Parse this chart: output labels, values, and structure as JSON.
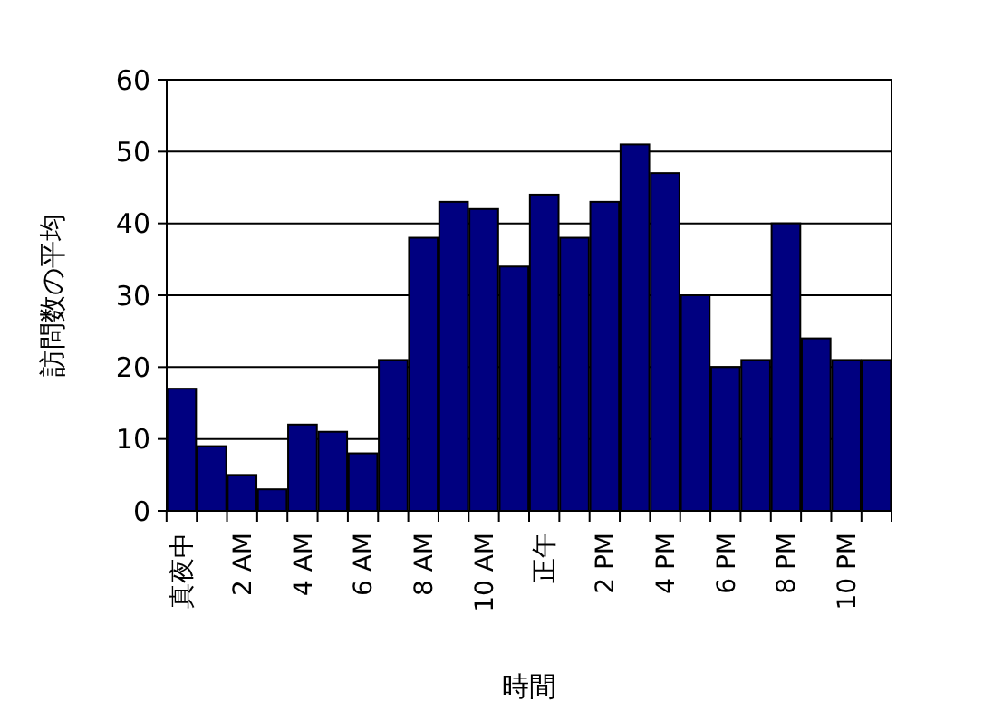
{
  "chart_data": {
    "type": "bar",
    "xlabel": "時間",
    "ylabel": "訪問数の平均",
    "categories": [
      "真夜中",
      null,
      "2 AM",
      null,
      "4 AM",
      null,
      "6 AM",
      null,
      "8 AM",
      null,
      "10 AM",
      null,
      "正午",
      null,
      "2 PM",
      null,
      "4 PM",
      null,
      "6 PM",
      null,
      "8 PM",
      null,
      "10 PM",
      null
    ],
    "values": [
      17,
      9,
      5,
      3,
      12,
      11,
      8,
      21,
      38,
      43,
      42,
      34,
      44,
      38,
      43,
      51,
      47,
      30,
      20,
      21,
      40,
      24,
      21,
      21
    ],
    "color": "#000080",
    "ylim": [
      0,
      60
    ],
    "yticks": [
      0,
      10,
      20,
      30,
      40,
      50,
      60
    ],
    "grid": "y"
  }
}
